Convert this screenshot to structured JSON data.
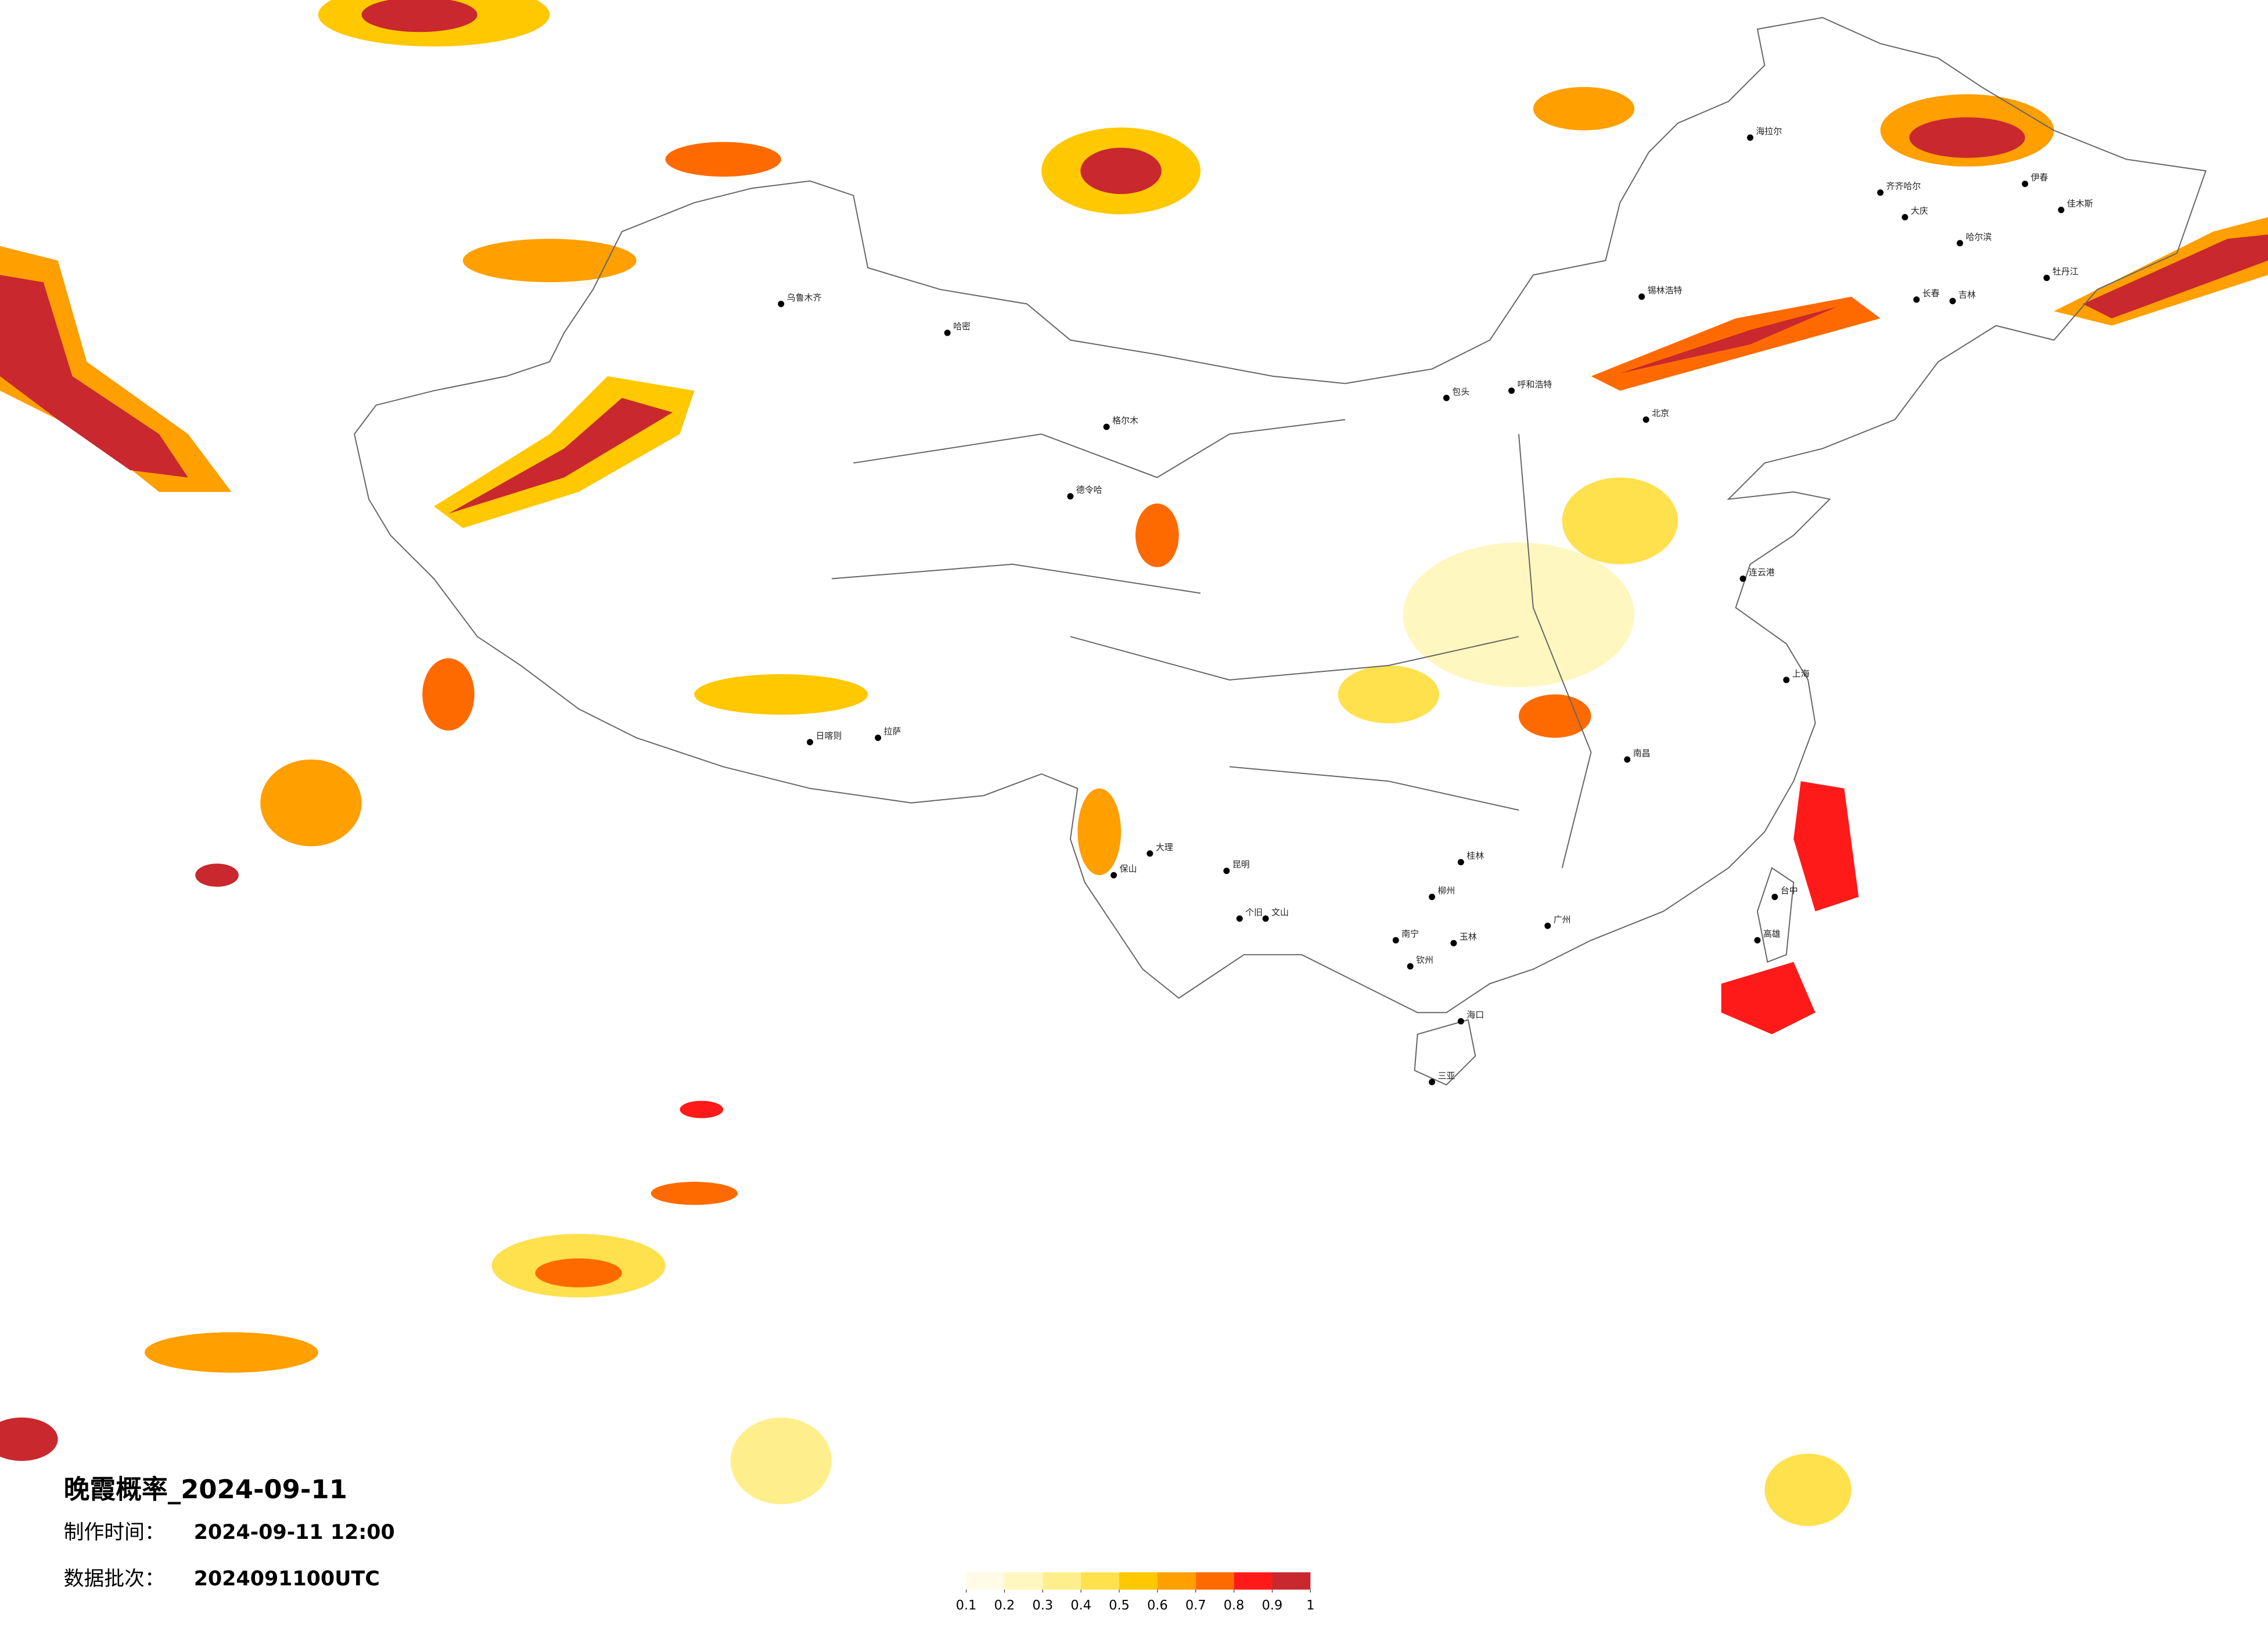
{
  "map": {
    "title": "晚霞概率_2024-09-11",
    "production_time_label": "制作时间：",
    "production_time": "2024-09-11 12:00",
    "batch_label": "数据批次：",
    "batch": "2024091100UTC",
    "colorbar": {
      "colors": [
        "#fffbe6",
        "#fff7bf",
        "#ffef8c",
        "#ffe04d",
        "#ffc800",
        "#ff9f00",
        "#ff6a00",
        "#ff1a1a",
        "#c8282e"
      ],
      "ticks": [
        {
          "value": 0.1,
          "label": "0.1"
        },
        {
          "value": 0.2,
          "label": "0.2"
        },
        {
          "value": 0.3,
          "label": "0.3"
        },
        {
          "value": 0.4,
          "label": "0.4"
        },
        {
          "value": 0.5,
          "label": "0.5"
        },
        {
          "value": 0.6,
          "label": "0.6"
        },
        {
          "value": 0.7,
          "label": "0.7"
        },
        {
          "value": 0.8,
          "label": "0.8"
        },
        {
          "value": 0.9,
          "label": "0.9"
        },
        1
      ]
    },
    "cities": [
      "乌鲁木齐",
      "哈密",
      "拉萨",
      "日喀则",
      "昆明",
      "南宁",
      "海口",
      "三亚",
      "哈尔滨",
      "长春",
      "吉林",
      "呼和浩特",
      "包头",
      "锡林浩特",
      "海拉尔",
      "齐齐哈尔",
      "大庆",
      "伊春",
      "佳木斯",
      "牡丹江",
      "大理",
      "保山",
      "格尔木",
      "德令哈",
      "连云港",
      "台中",
      "高雄",
      "南昌",
      "桂林",
      "柳州",
      "个旧",
      "文山",
      "玉林",
      "钦州",
      "北京",
      "上海",
      "广州"
    ]
  }
}
